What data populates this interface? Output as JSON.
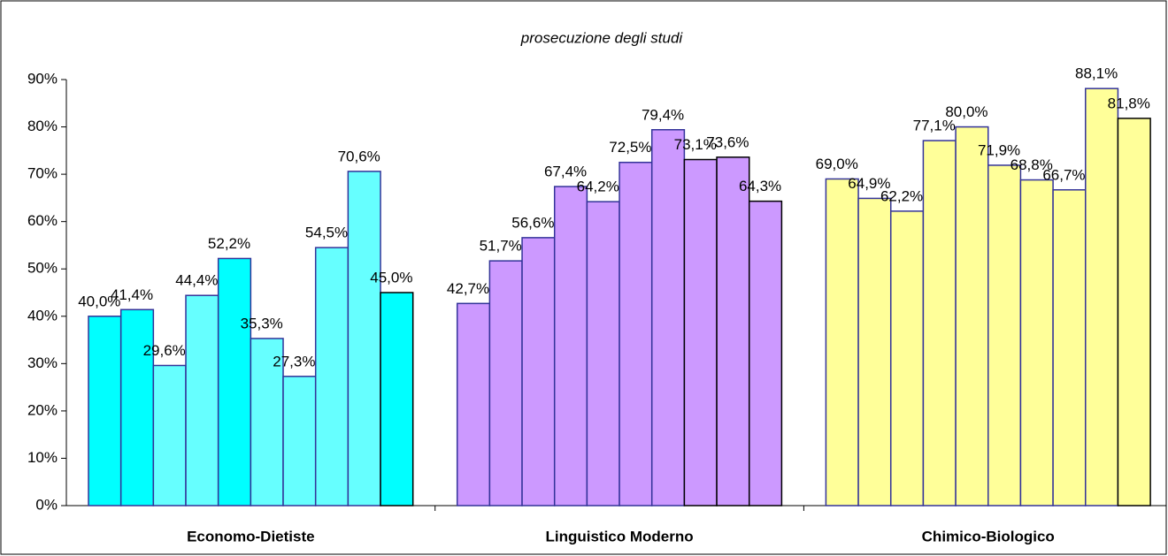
{
  "chart_data": {
    "type": "bar",
    "title": "prosecuzione degli studi",
    "categories": [
      "Economo-Dietiste",
      "Linguistico Moderno",
      "Chimico-Biologico"
    ],
    "bar_groups": [
      {
        "values": [
          40.0,
          41.4,
          29.6,
          44.4,
          52.2,
          35.3,
          27.3,
          54.5,
          70.6,
          45.0
        ],
        "value_labels": [
          "40,0%",
          "41,4%",
          "29,6%",
          "44,4%",
          "52,2%",
          "35,3%",
          "27,3%",
          "54,5%",
          "70,6%",
          "45,0%"
        ],
        "colors": [
          "#00ffff",
          "#00ffff",
          "#66ffff",
          "#66ffff",
          "#00ffff",
          "#66ffff",
          "#66ffff",
          "#66ffff",
          "#66ffff",
          "#00ffff"
        ],
        "edgecolors": [
          "#333399",
          "#333399",
          "#333399",
          "#333399",
          "#333399",
          "#333399",
          "#333399",
          "#333399",
          "#333399",
          "#000000"
        ]
      },
      {
        "values": [
          42.7,
          51.7,
          56.6,
          67.4,
          64.2,
          72.5,
          79.4,
          73.1,
          73.6,
          64.3
        ],
        "value_labels": [
          "42,7%",
          "51,7%",
          "56,6%",
          "67,4%",
          "64,2%",
          "72,5%",
          "79,4%",
          "73,1%",
          "73,6%",
          "64,3%"
        ],
        "colors": [
          "#cc99ff",
          "#cc99ff",
          "#cc99ff",
          "#cc99ff",
          "#cc99ff",
          "#cc99ff",
          "#cc99ff",
          "#cc99ff",
          "#cc99ff",
          "#cc99ff"
        ],
        "edgecolors": [
          "#333399",
          "#333399",
          "#333399",
          "#333399",
          "#333399",
          "#333399",
          "#333399",
          "#000000",
          "#000000",
          "#000000"
        ]
      },
      {
        "values": [
          69.0,
          64.9,
          62.2,
          77.1,
          80.0,
          71.9,
          68.8,
          66.7,
          88.1,
          81.8
        ],
        "value_labels": [
          "69,0%",
          "64,9%",
          "62,2%",
          "77,1%",
          "80,0%",
          "71,9%",
          "68,8%",
          "66,7%",
          "88,1%",
          "81,8%"
        ],
        "colors": [
          "#ffff99",
          "#ffff99",
          "#ffff99",
          "#ffff99",
          "#ffff99",
          "#ffff99",
          "#ffff99",
          "#ffff99",
          "#ffff99",
          "#ffff99"
        ],
        "edgecolors": [
          "#333399",
          "#333399",
          "#333399",
          "#333399",
          "#333399",
          "#333399",
          "#333399",
          "#333399",
          "#333399",
          "#000000"
        ]
      }
    ],
    "ylim": [
      0,
      90
    ],
    "yticks": [
      {
        "value": 0,
        "label": "0%"
      },
      {
        "value": 10,
        "label": "10%"
      },
      {
        "value": 20,
        "label": "20%"
      },
      {
        "value": 30,
        "label": "30%"
      },
      {
        "value": 40,
        "label": "40%"
      },
      {
        "value": 50,
        "label": "50%"
      },
      {
        "value": 60,
        "label": "60%"
      },
      {
        "value": 70,
        "label": "70%"
      },
      {
        "value": 80,
        "label": "80%"
      },
      {
        "value": 90,
        "label": "90%"
      }
    ],
    "grid": false
  }
}
